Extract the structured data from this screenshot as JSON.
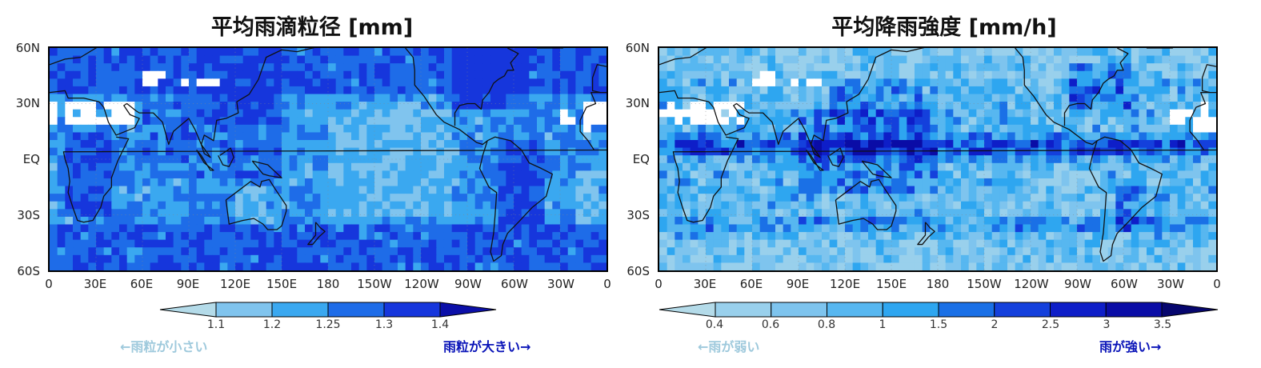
{
  "maps": [
    {
      "title": "平均雨滴粒径 [mm]",
      "lat_labels": [
        "60N",
        "30N",
        "EQ",
        "30S",
        "60S"
      ],
      "lon_labels": [
        "0",
        "30E",
        "60E",
        "90E",
        "120E",
        "150E",
        "180",
        "150W",
        "120W",
        "90W",
        "60W",
        "30W",
        "0"
      ],
      "colorbar": {
        "ticks": [
          "1.1",
          "1.2",
          "1.25",
          "1.3",
          "1.4"
        ],
        "colors": [
          "#b4dbe9",
          "#80c4ee",
          "#3aa8f0",
          "#1e6ce8",
          "#1636dc",
          "#0b0fa8"
        ],
        "extend": "both"
      },
      "hint_left": "←雨粒が小さい",
      "hint_right": "雨粒が大きい→",
      "hint_left_color": "#9ec9dc",
      "hint_right_color": "#0a14b8"
    },
    {
      "title": "平均降雨強度 [mm/h]",
      "lat_labels": [
        "60N",
        "30N",
        "EQ",
        "30S",
        "60S"
      ],
      "lon_labels": [
        "0",
        "30E",
        "60E",
        "90E",
        "120E",
        "150E",
        "180",
        "150W",
        "120W",
        "90W",
        "60W",
        "30W",
        "0"
      ],
      "colorbar": {
        "ticks": [
          "0.4",
          "0.6",
          "0.8",
          "1",
          "1.5",
          "2",
          "2.5",
          "3",
          "3.5"
        ],
        "colors": [
          "#b4dbe9",
          "#99d0ec",
          "#7ec4ee",
          "#57b7f0",
          "#2ea6f0",
          "#1a70e6",
          "#1440dc",
          "#0e1ec8",
          "#0a0ca6",
          "#06066e"
        ],
        "extend": "both"
      },
      "hint_left": "←雨が弱い",
      "hint_right": "雨が強い→",
      "hint_left_color": "#9ec9dc",
      "hint_right_color": "#0a14b8"
    }
  ]
}
